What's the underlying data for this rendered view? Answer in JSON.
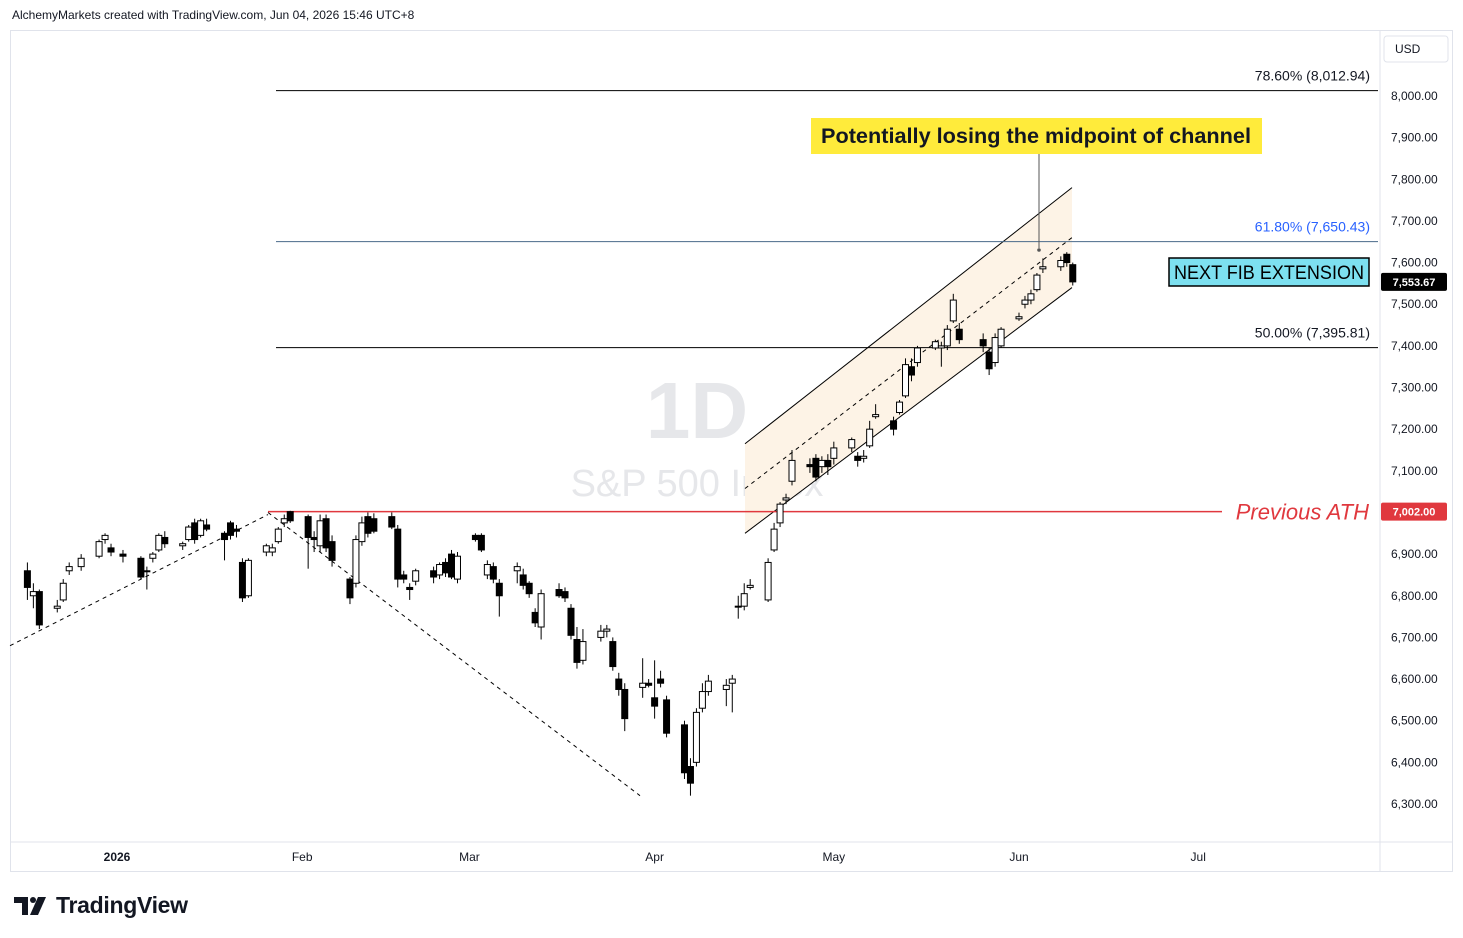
{
  "header": {
    "credit": "AlchemyMarkets created with TradingView.com, Jun 04, 2026 15:46 UTC+8"
  },
  "footer": {
    "brand": "TradingView"
  },
  "colors": {
    "up": "#ffffff",
    "down": "#000000",
    "ath": "#e0383e",
    "fib618": "#2962ff",
    "channel_fill": "#fdf3e6",
    "callout_bg": "#ffeb3b",
    "fib_box_bg": "#7de0f0"
  },
  "chart_data": {
    "type": "candlestick",
    "symbol_watermark": "S&P 500 Index",
    "interval_watermark": "1D",
    "currency": "USD",
    "y_ticks": [
      6300,
      6400,
      6500,
      6600,
      6700,
      6800,
      6900,
      7100,
      7200,
      7300,
      7400,
      7500,
      7600,
      7700,
      7800,
      7900,
      8000
    ],
    "y_tick_labels": [
      "6,300.00",
      "6,400.00",
      "6,500.00",
      "6,600.00",
      "6,700.00",
      "6,800.00",
      "6,900.00",
      "7,100.00",
      "7,200.00",
      "7,300.00",
      "7,400.00",
      "7,500.00",
      "7,600.00",
      "7,700.00",
      "7,800.00",
      "7,900.00",
      "8,000.00"
    ],
    "x_labels": [
      {
        "label": "2026",
        "date": "2026-01-01"
      },
      {
        "label": "Feb",
        "date": "2026-02-01"
      },
      {
        "label": "Mar",
        "date": "2026-03-01"
      },
      {
        "label": "Apr",
        "date": "2026-04-01"
      },
      {
        "label": "May",
        "date": "2026-05-01"
      },
      {
        "label": "Jun",
        "date": "2026-06-01"
      },
      {
        "label": "Jul",
        "date": "2026-07-01"
      }
    ],
    "last_price": {
      "value": 7553.67,
      "label": "7,553.67"
    },
    "horizontal_levels": [
      {
        "label": "78.60% (8,012.94)",
        "value": 8012.94,
        "kind": "fib"
      },
      {
        "label": "61.80% (7,650.43)",
        "value": 7650.43,
        "kind": "fib618"
      },
      {
        "label": "50.00% (7,395.81)",
        "value": 7395.81,
        "kind": "fib"
      },
      {
        "label": "Previous ATH",
        "value": 7002.0,
        "price_label": "7,002.00",
        "kind": "ath"
      }
    ],
    "annotations": {
      "callout": "Potentially losing the midpoint of channel",
      "fib_box": "NEXT FIB EXTENSION"
    },
    "candles": [
      {
        "d": "2025-12-17",
        "o": 6860,
        "h": 6880,
        "l": 6790,
        "c": 6820
      },
      {
        "d": "2025-12-18",
        "o": 6800,
        "h": 6830,
        "l": 6770,
        "c": 6810
      },
      {
        "d": "2025-12-19",
        "o": 6810,
        "h": 6815,
        "l": 6720,
        "c": 6730
      },
      {
        "d": "2025-12-22",
        "o": 6770,
        "h": 6790,
        "l": 6760,
        "c": 6775
      },
      {
        "d": "2025-12-23",
        "o": 6790,
        "h": 6840,
        "l": 6785,
        "c": 6830
      },
      {
        "d": "2025-12-24",
        "o": 6860,
        "h": 6880,
        "l": 6850,
        "c": 6870
      },
      {
        "d": "2025-12-26",
        "o": 6870,
        "h": 6900,
        "l": 6860,
        "c": 6890
      },
      {
        "d": "2025-12-29",
        "o": 6895,
        "h": 6935,
        "l": 6890,
        "c": 6930
      },
      {
        "d": "2025-12-30",
        "o": 6935,
        "h": 6950,
        "l": 6925,
        "c": 6945
      },
      {
        "d": "2025-12-31",
        "o": 6915,
        "h": 6925,
        "l": 6895,
        "c": 6905
      },
      {
        "d": "2026-01-02",
        "o": 6900,
        "h": 6910,
        "l": 6880,
        "c": 6895
      },
      {
        "d": "2026-01-05",
        "o": 6890,
        "h": 6895,
        "l": 6840,
        "c": 6845
      },
      {
        "d": "2026-01-06",
        "o": 6860,
        "h": 6870,
        "l": 6815,
        "c": 6860
      },
      {
        "d": "2026-01-07",
        "o": 6890,
        "h": 6905,
        "l": 6880,
        "c": 6900
      },
      {
        "d": "2026-01-08",
        "o": 6910,
        "h": 6950,
        "l": 6905,
        "c": 6945
      },
      {
        "d": "2026-01-09",
        "o": 6940,
        "h": 6955,
        "l": 6915,
        "c": 6925
      },
      {
        "d": "2026-01-12",
        "o": 6920,
        "h": 6930,
        "l": 6910,
        "c": 6925
      },
      {
        "d": "2026-01-13",
        "o": 6935,
        "h": 6970,
        "l": 6930,
        "c": 6965
      },
      {
        "d": "2026-01-14",
        "o": 6975,
        "h": 6985,
        "l": 6925,
        "c": 6935
      },
      {
        "d": "2026-01-15",
        "o": 6945,
        "h": 6985,
        "l": 6940,
        "c": 6980
      },
      {
        "d": "2026-01-16",
        "o": 6970,
        "h": 6985,
        "l": 6955,
        "c": 6960
      },
      {
        "d": "2026-01-19",
        "o": 6950,
        "h": 6955,
        "l": 6885,
        "c": 6935
      },
      {
        "d": "2026-01-20",
        "o": 6975,
        "h": 6980,
        "l": 6935,
        "c": 6945
      },
      {
        "d": "2026-01-21",
        "o": 6960,
        "h": 6970,
        "l": 6940,
        "c": 6955
      },
      {
        "d": "2026-01-22",
        "o": 6880,
        "h": 6890,
        "l": 6785,
        "c": 6795
      },
      {
        "d": "2026-01-23",
        "o": 6800,
        "h": 6890,
        "l": 6795,
        "c": 6885
      },
      {
        "d": "2026-01-26",
        "o": 6905,
        "h": 6925,
        "l": 6895,
        "c": 6920
      },
      {
        "d": "2026-01-27",
        "o": 6905,
        "h": 6925,
        "l": 6895,
        "c": 6915
      },
      {
        "d": "2026-01-28",
        "o": 6930,
        "h": 6965,
        "l": 6925,
        "c": 6960
      },
      {
        "d": "2026-01-29",
        "o": 6975,
        "h": 6995,
        "l": 6965,
        "c": 6985
      },
      {
        "d": "2026-01-30",
        "o": 7002,
        "h": 7004,
        "l": 6975,
        "c": 6980
      },
      {
        "d": "2026-02-02",
        "o": 6990,
        "h": 6995,
        "l": 6865,
        "c": 6940
      },
      {
        "d": "2026-02-03",
        "o": 6940,
        "h": 6955,
        "l": 6905,
        "c": 6935
      },
      {
        "d": "2026-02-04",
        "o": 6920,
        "h": 6995,
        "l": 6905,
        "c": 6980
      },
      {
        "d": "2026-02-05",
        "o": 6985,
        "h": 6995,
        "l": 6905,
        "c": 6915
      },
      {
        "d": "2026-02-06",
        "o": 6930,
        "h": 6945,
        "l": 6870,
        "c": 6885
      },
      {
        "d": "2026-02-09",
        "o": 6840,
        "h": 6845,
        "l": 6780,
        "c": 6795
      },
      {
        "d": "2026-02-10",
        "o": 6830,
        "h": 6945,
        "l": 6820,
        "c": 6935
      },
      {
        "d": "2026-02-11",
        "o": 6930,
        "h": 6990,
        "l": 6920,
        "c": 6975
      },
      {
        "d": "2026-02-12",
        "o": 6990,
        "h": 7000,
        "l": 6940,
        "c": 6950
      },
      {
        "d": "2026-02-13",
        "o": 6985,
        "h": 6998,
        "l": 6950,
        "c": 6955
      },
      {
        "d": "2026-02-16",
        "o": 6990,
        "h": 7000,
        "l": 6960,
        "c": 6965
      },
      {
        "d": "2026-02-17",
        "o": 6960,
        "h": 6970,
        "l": 6820,
        "c": 6840
      },
      {
        "d": "2026-02-18",
        "o": 6850,
        "h": 6860,
        "l": 6830,
        "c": 6840
      },
      {
        "d": "2026-02-19",
        "o": 6820,
        "h": 6830,
        "l": 6790,
        "c": 6815
      },
      {
        "d": "2026-02-20",
        "o": 6835,
        "h": 6865,
        "l": 6825,
        "c": 6860
      },
      {
        "d": "2026-02-23",
        "o": 6860,
        "h": 6870,
        "l": 6830,
        "c": 6845
      },
      {
        "d": "2026-02-24",
        "o": 6850,
        "h": 6880,
        "l": 6840,
        "c": 6875
      },
      {
        "d": "2026-02-25",
        "o": 6880,
        "h": 6890,
        "l": 6845,
        "c": 6855
      },
      {
        "d": "2026-02-26",
        "o": 6900,
        "h": 6910,
        "l": 6840,
        "c": 6845
      },
      {
        "d": "2026-02-27",
        "o": 6840,
        "h": 6905,
        "l": 6830,
        "c": 6895
      },
      {
        "d": "2026-03-02",
        "o": 6945,
        "h": 6950,
        "l": 6930,
        "c": 6935
      },
      {
        "d": "2026-03-03",
        "o": 6945,
        "h": 6950,
        "l": 6905,
        "c": 6910
      },
      {
        "d": "2026-03-04",
        "o": 6850,
        "h": 6885,
        "l": 6840,
        "c": 6875
      },
      {
        "d": "2026-03-05",
        "o": 6870,
        "h": 6880,
        "l": 6830,
        "c": 6840
      },
      {
        "d": "2026-03-06",
        "o": 6830,
        "h": 6840,
        "l": 6750,
        "c": 6800
      },
      {
        "d": "2026-03-09",
        "o": 6860,
        "h": 6880,
        "l": 6830,
        "c": 6870
      },
      {
        "d": "2026-03-10",
        "o": 6850,
        "h": 6865,
        "l": 6815,
        "c": 6825
      },
      {
        "d": "2026-03-11",
        "o": 6830,
        "h": 6835,
        "l": 6795,
        "c": 6805
      },
      {
        "d": "2026-03-12",
        "o": 6760,
        "h": 6770,
        "l": 6725,
        "c": 6735
      },
      {
        "d": "2026-03-13",
        "o": 6725,
        "h": 6815,
        "l": 6695,
        "c": 6805
      },
      {
        "d": "2026-03-16",
        "o": 6815,
        "h": 6830,
        "l": 6795,
        "c": 6800
      },
      {
        "d": "2026-03-17",
        "o": 6810,
        "h": 6820,
        "l": 6785,
        "c": 6795
      },
      {
        "d": "2026-03-18",
        "o": 6770,
        "h": 6780,
        "l": 6695,
        "c": 6705
      },
      {
        "d": "2026-03-19",
        "o": 6695,
        "h": 6725,
        "l": 6625,
        "c": 6640
      },
      {
        "d": "2026-03-20",
        "o": 6645,
        "h": 6720,
        "l": 6635,
        "c": 6690
      },
      {
        "d": "2026-03-23",
        "o": 6700,
        "h": 6730,
        "l": 6690,
        "c": 6715
      },
      {
        "d": "2026-03-24",
        "o": 6715,
        "h": 6730,
        "l": 6700,
        "c": 6720
      },
      {
        "d": "2026-03-25",
        "o": 6690,
        "h": 6700,
        "l": 6620,
        "c": 6630
      },
      {
        "d": "2026-03-26",
        "o": 6600,
        "h": 6615,
        "l": 6560,
        "c": 6575
      },
      {
        "d": "2026-03-27",
        "o": 6575,
        "h": 6590,
        "l": 6475,
        "c": 6505
      },
      {
        "d": "2026-03-30",
        "o": 6580,
        "h": 6650,
        "l": 6555,
        "c": 6590
      },
      {
        "d": "2026-03-31",
        "o": 6590,
        "h": 6600,
        "l": 6580,
        "c": 6585
      },
      {
        "d": "2026-04-01",
        "o": 6555,
        "h": 6645,
        "l": 6505,
        "c": 6535
      },
      {
        "d": "2026-04-02",
        "o": 6600,
        "h": 6620,
        "l": 6580,
        "c": 6590
      },
      {
        "d": "2026-04-03",
        "o": 6550,
        "h": 6560,
        "l": 6460,
        "c": 6470
      },
      {
        "d": "2026-04-06",
        "o": 6490,
        "h": 6500,
        "l": 6360,
        "c": 6375
      },
      {
        "d": "2026-04-07",
        "o": 6390,
        "h": 6410,
        "l": 6320,
        "c": 6350
      },
      {
        "d": "2026-04-08",
        "o": 6400,
        "h": 6530,
        "l": 6390,
        "c": 6520
      },
      {
        "d": "2026-04-09",
        "o": 6530,
        "h": 6590,
        "l": 6520,
        "c": 6570
      },
      {
        "d": "2026-04-10",
        "o": 6570,
        "h": 6610,
        "l": 6560,
        "c": 6595
      },
      {
        "d": "2026-04-13",
        "o": 6575,
        "h": 6600,
        "l": 6535,
        "c": 6585
      },
      {
        "d": "2026-04-14",
        "o": 6590,
        "h": 6610,
        "l": 6520,
        "c": 6600
      },
      {
        "d": "2026-04-15",
        "o": 6775,
        "h": 6800,
        "l": 6745,
        "c": 6775
      },
      {
        "d": "2026-04-16",
        "o": 6775,
        "h": 6830,
        "l": 6765,
        "c": 6805
      },
      {
        "d": "2026-04-17",
        "o": 6820,
        "h": 6840,
        "l": 6815,
        "c": 6825
      },
      {
        "d": "2026-04-20",
        "o": 6790,
        "h": 6890,
        "l": 6785,
        "c": 6880
      },
      {
        "d": "2026-04-21",
        "o": 6910,
        "h": 6975,
        "l": 6905,
        "c": 6960
      },
      {
        "d": "2026-04-22",
        "o": 6975,
        "h": 7025,
        "l": 6965,
        "c": 7020
      },
      {
        "d": "2026-04-23",
        "o": 7030,
        "h": 7045,
        "l": 7020,
        "c": 7035
      },
      {
        "d": "2026-04-24",
        "o": 7075,
        "h": 7150,
        "l": 7065,
        "c": 7125
      },
      {
        "d": "2026-04-27",
        "o": 7115,
        "h": 7130,
        "l": 7095,
        "c": 7110
      },
      {
        "d": "2026-04-28",
        "o": 7130,
        "h": 7140,
        "l": 7075,
        "c": 7085
      },
      {
        "d": "2026-04-29",
        "o": 7110,
        "h": 7135,
        "l": 7095,
        "c": 7125
      },
      {
        "d": "2026-04-30",
        "o": 7125,
        "h": 7140,
        "l": 7090,
        "c": 7110
      },
      {
        "d": "2026-05-01",
        "o": 7130,
        "h": 7170,
        "l": 7115,
        "c": 7155
      },
      {
        "d": "2026-05-04",
        "o": 7155,
        "h": 7180,
        "l": 7145,
        "c": 7175
      },
      {
        "d": "2026-05-05",
        "o": 7135,
        "h": 7145,
        "l": 7110,
        "c": 7125
      },
      {
        "d": "2026-05-06",
        "o": 7130,
        "h": 7150,
        "l": 7120,
        "c": 7135
      },
      {
        "d": "2026-05-07",
        "o": 7160,
        "h": 7220,
        "l": 7155,
        "c": 7200
      },
      {
        "d": "2026-05-08",
        "o": 7230,
        "h": 7260,
        "l": 7225,
        "c": 7235
      },
      {
        "d": "2026-05-11",
        "o": 7220,
        "h": 7230,
        "l": 7185,
        "c": 7200
      },
      {
        "d": "2026-05-12",
        "o": 7240,
        "h": 7270,
        "l": 7235,
        "c": 7265
      },
      {
        "d": "2026-05-13",
        "o": 7280,
        "h": 7370,
        "l": 7275,
        "c": 7355
      },
      {
        "d": "2026-05-14",
        "o": 7350,
        "h": 7370,
        "l": 7315,
        "c": 7330
      },
      {
        "d": "2026-05-15",
        "o": 7360,
        "h": 7400,
        "l": 7350,
        "c": 7395
      },
      {
        "d": "2026-05-18",
        "o": 7395,
        "h": 7415,
        "l": 7390,
        "c": 7410
      },
      {
        "d": "2026-05-19",
        "o": 7395,
        "h": 7410,
        "l": 7350,
        "c": 7400
      },
      {
        "d": "2026-05-20",
        "o": 7400,
        "h": 7450,
        "l": 7390,
        "c": 7440
      },
      {
        "d": "2026-05-21",
        "o": 7460,
        "h": 7525,
        "l": 7455,
        "c": 7510
      },
      {
        "d": "2026-05-22",
        "o": 7440,
        "h": 7455,
        "l": 7405,
        "c": 7415
      },
      {
        "d": "2026-05-26",
        "o": 7415,
        "h": 7430,
        "l": 7385,
        "c": 7400
      },
      {
        "d": "2026-05-27",
        "o": 7385,
        "h": 7395,
        "l": 7330,
        "c": 7345
      },
      {
        "d": "2026-05-28",
        "o": 7360,
        "h": 7430,
        "l": 7350,
        "c": 7420
      },
      {
        "d": "2026-05-29",
        "o": 7400,
        "h": 7445,
        "l": 7395,
        "c": 7440
      },
      {
        "d": "2026-06-01",
        "o": 7465,
        "h": 7480,
        "l": 7460,
        "c": 7470
      },
      {
        "d": "2026-06-02",
        "o": 7500,
        "h": 7520,
        "l": 7490,
        "c": 7510
      },
      {
        "d": "2026-06-03",
        "o": 7510,
        "h": 7535,
        "l": 7500,
        "c": 7525
      },
      {
        "d": "2026-06-04",
        "o": 7535,
        "h": 7575,
        "l": 7530,
        "c": 7570
      },
      {
        "d": "2026-06-05",
        "o": 7585,
        "h": 7610,
        "l": 7575,
        "c": 7590
      },
      {
        "d": "2026-06-08",
        "o": 7590,
        "h": 7615,
        "l": 7580,
        "c": 7605
      },
      {
        "d": "2026-06-09",
        "o": 7620,
        "h": 7625,
        "l": 7590,
        "c": 7600
      },
      {
        "d": "2026-06-10",
        "o": 7595,
        "h": 7600,
        "l": 7545,
        "c": 7553.67
      }
    ]
  }
}
